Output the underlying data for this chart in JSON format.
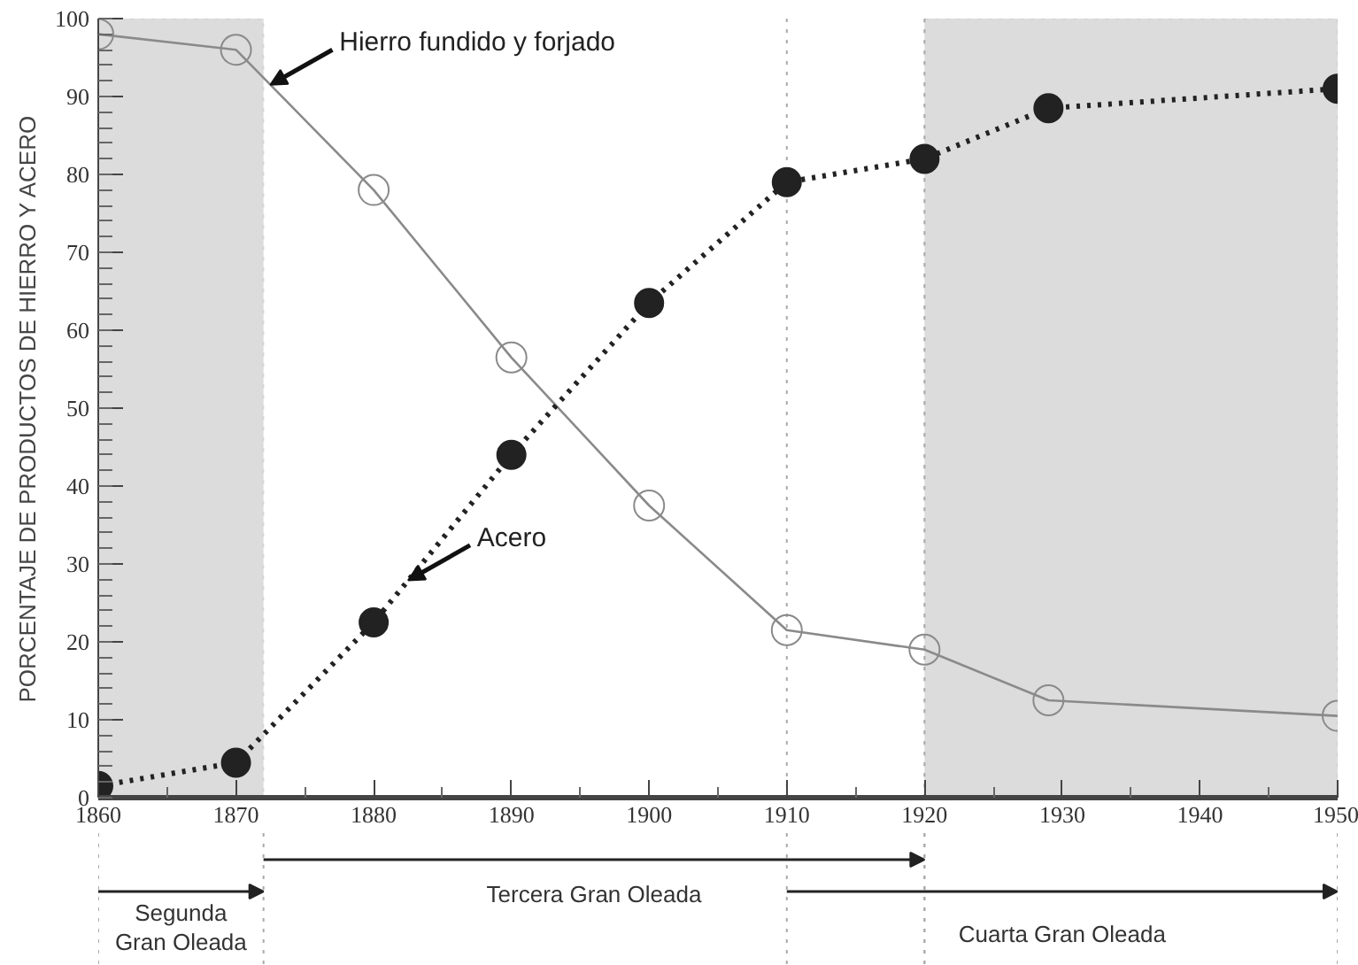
{
  "chart_data": {
    "type": "line",
    "ylabel": "PORCENTAJE DE PRODUCTOS DE HIERRO Y ACERO",
    "x": [
      1860,
      1870,
      1880,
      1890,
      1900,
      1910,
      1920,
      1929,
      1950
    ],
    "series": [
      {
        "color": "#8a8a8a",
        "line_style": "solid",
        "values": [
          98,
          96,
          78,
          56.5,
          37.5,
          21.5,
          19,
          12.5,
          10.5
        ]
      },
      {
        "color": "#222222",
        "line_style": "dotted",
        "values": [
          1.5,
          4.5,
          22.5,
          44,
          63.5,
          79,
          82,
          88.5,
          91
        ]
      }
    ],
    "marker": "circle",
    "xlim": [
      1860,
      1950
    ],
    "xticks": [
      1860,
      1870,
      1880,
      1890,
      1900,
      1910,
      1920,
      1930,
      1940,
      1950
    ],
    "ylim": [
      0,
      100
    ],
    "yticks": [
      0,
      10,
      20,
      30,
      40,
      50,
      60,
      70,
      80,
      90,
      100
    ],
    "grid": false,
    "bands": [
      {
        "axis": "x",
        "from": 1860,
        "to": 1872,
        "color": "#dcdcdc"
      },
      {
        "axis": "x",
        "from": 1920,
        "to": 1950,
        "color": "#dcdcdc"
      }
    ],
    "ref_lines": [
      {
        "axis": "x",
        "value": 1910,
        "line_style": "dotted",
        "color": "#aaaaaa"
      },
      {
        "axis": "x",
        "value": 1920,
        "line_style": "dotted",
        "color": "#aaaaaa"
      }
    ],
    "annotations": [
      {
        "text": "Hierro fundido y forjado",
        "x": 1872.5,
        "y": 91.5
      },
      {
        "text": "Acero",
        "x": 1882.5,
        "y": 27.9
      },
      "Segunda Gran Oleada",
      "Tercera Gran Oleada",
      "Cuarta Gran Oleada"
    ]
  }
}
